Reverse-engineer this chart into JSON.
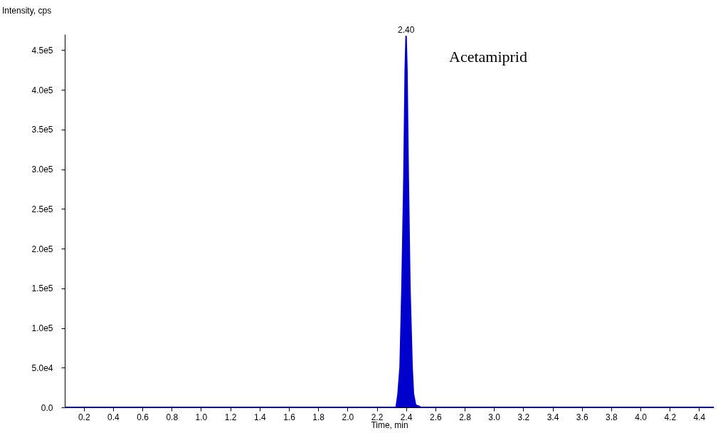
{
  "chart_data": {
    "type": "area",
    "xlabel": "Time, min",
    "ylabel": "Intensity, cps",
    "x": [
      0.07,
      2.332,
      2.345,
      2.359,
      2.372,
      2.385,
      2.394,
      2.4,
      2.406,
      2.415,
      2.426,
      2.441,
      2.45,
      2.465,
      2.492,
      2.5,
      4.5
    ],
    "series": [
      {
        "color": "#0000cc",
        "values": [
          0,
          0,
          17000,
          51000,
          153000,
          289000,
          425000,
          468000,
          425000,
          289000,
          153000,
          51000,
          17000,
          3000,
          1000,
          0,
          0
        ]
      }
    ],
    "annotations": [
      {
        "text": "2.40",
        "x": 2.4,
        "y": 468000
      },
      "Acetamiprid"
    ],
    "xlim": [
      0.07,
      4.5
    ],
    "ylim": [
      0,
      470000
    ],
    "xticks": [
      {
        "value": 0.2,
        "label": "0.2"
      },
      {
        "value": 0.4,
        "label": "0.4"
      },
      {
        "value": 0.6,
        "label": "0.6"
      },
      {
        "value": 0.8,
        "label": "0.8"
      },
      {
        "value": 1.0,
        "label": "1.0"
      },
      {
        "value": 1.2,
        "label": "1.2"
      },
      {
        "value": 1.4,
        "label": "1.4"
      },
      {
        "value": 1.6,
        "label": "1.6"
      },
      {
        "value": 1.8,
        "label": "1.8"
      },
      {
        "value": 2.0,
        "label": "2.0"
      },
      {
        "value": 2.2,
        "label": "2.2"
      },
      {
        "value": 2.4,
        "label": "2.4"
      },
      {
        "value": 2.6,
        "label": "2.6"
      },
      {
        "value": 2.8,
        "label": "2.8"
      },
      {
        "value": 3.0,
        "label": "3.0"
      },
      {
        "value": 3.2,
        "label": "3.2"
      },
      {
        "value": 3.4,
        "label": "3.4"
      },
      {
        "value": 3.6,
        "label": "3.6"
      },
      {
        "value": 3.8,
        "label": "3.8"
      },
      {
        "value": 4.0,
        "label": "4.0"
      },
      {
        "value": 4.2,
        "label": "4.2"
      },
      {
        "value": 4.4,
        "label": "4.4"
      }
    ],
    "yticks": [
      {
        "value": 0,
        "label": "0.0"
      },
      {
        "value": 50000,
        "label": "5.0e4"
      },
      {
        "value": 100000,
        "label": "1.0e5"
      },
      {
        "value": 150000,
        "label": "1.5e5"
      },
      {
        "value": 200000,
        "label": "2.0e5"
      },
      {
        "value": 250000,
        "label": "2.5e5"
      },
      {
        "value": 300000,
        "label": "3.0e5"
      },
      {
        "value": 350000,
        "label": "3.5e5"
      },
      {
        "value": 400000,
        "label": "4.0e5"
      },
      {
        "value": 450000,
        "label": "4.5e5"
      }
    ],
    "grid": false
  }
}
